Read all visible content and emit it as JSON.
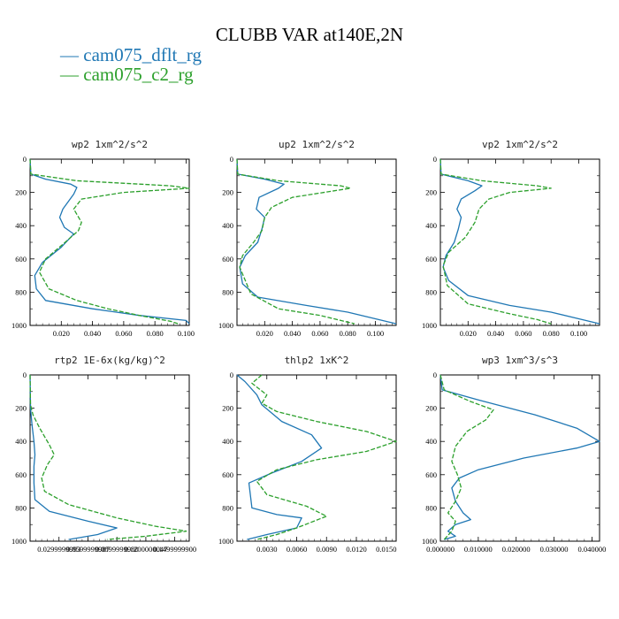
{
  "chart_data": {
    "title": "CLUBB VAR at140E,2N",
    "legend": [
      {
        "label": "cam075_dflt_rg",
        "color": "#1f77b4",
        "dash": "solid"
      },
      {
        "label": "cam075_c2_rg",
        "color": "#2ca02c",
        "dash": "dashed"
      }
    ],
    "panels": [
      {
        "title": "wp2   1xm^2/s^2",
        "type": "line",
        "xlim": [
          0,
          0.102
        ],
        "ylim": [
          0,
          1000
        ],
        "xticks": [
          0.02,
          0.04,
          0.06,
          0.08,
          0.1
        ],
        "xticklabels": [
          "0.020",
          "0.040",
          "0.060",
          "0.080",
          "0.100"
        ],
        "yticks": [
          0,
          200,
          400,
          600,
          800,
          1000
        ],
        "series": [
          {
            "name": "cam075_dflt_rg",
            "x": [
              0,
              0.0005,
              0.01,
              0.026,
              0.03,
              0.028,
              0.021,
              0.019,
              0.022,
              0.028,
              0.02,
              0.008,
              0.003,
              0.004,
              0.01,
              0.04,
              0.07,
              0.1,
              0.102
            ],
            "y": [
              0,
              90,
              120,
              150,
              170,
              210,
              300,
              350,
              410,
              450,
              530,
              620,
              700,
              780,
              850,
              900,
              940,
              970,
              990
            ]
          },
          {
            "name": "cam075_c2_rg",
            "x": [
              0,
              0.0005,
              0.03,
              0.09,
              0.102,
              0.06,
              0.033,
              0.028,
              0.033,
              0.031,
              0.02,
              0.01,
              0.006,
              0.012,
              0.03,
              0.05,
              0.07,
              0.09,
              0.095
            ],
            "y": [
              0,
              90,
              130,
              160,
              175,
              200,
              240,
              300,
              380,
              430,
              520,
              600,
              680,
              780,
              850,
              900,
              940,
              975,
              990
            ]
          }
        ]
      },
      {
        "title": "up2   1xm^2/s^2",
        "type": "line",
        "xlim": [
          0,
          0.115
        ],
        "ylim": [
          0,
          1000
        ],
        "xticks": [
          0.02,
          0.04,
          0.06,
          0.08,
          0.1
        ],
        "xticklabels": [
          "0.020",
          "0.040",
          "0.060",
          "0.080",
          "0.100"
        ],
        "yticks": [
          0,
          200,
          400,
          600,
          800,
          1000
        ],
        "series": [
          {
            "name": "cam075_dflt_rg",
            "x": [
              0,
              0.0005,
              0.02,
              0.034,
              0.03,
              0.016,
              0.014,
              0.02,
              0.018,
              0.015,
              0.006,
              0.002,
              0.004,
              0.015,
              0.05,
              0.08,
              0.1,
              0.115
            ],
            "y": [
              0,
              90,
              120,
              150,
              175,
              230,
              300,
              350,
              420,
              500,
              580,
              650,
              750,
              830,
              880,
              920,
              960,
              990
            ]
          },
          {
            "name": "cam075_c2_rg",
            "x": [
              0,
              0.0005,
              0.03,
              0.075,
              0.082,
              0.04,
              0.025,
              0.02,
              0.018,
              0.012,
              0.004,
              0.002,
              0.01,
              0.03,
              0.06,
              0.075,
              0.085
            ],
            "y": [
              0,
              90,
              130,
              160,
              175,
              230,
              290,
              350,
              430,
              500,
              580,
              650,
              810,
              900,
              940,
              970,
              990
            ]
          }
        ]
      },
      {
        "title": "vp2   1xm^2/s^2",
        "type": "line",
        "xlim": [
          0,
          0.115
        ],
        "ylim": [
          0,
          1000
        ],
        "xticks": [
          0.02,
          0.04,
          0.06,
          0.08,
          0.1
        ],
        "xticklabels": [
          "0.020",
          "0.040",
          "0.060",
          "0.080",
          "0.100"
        ],
        "yticks": [
          0,
          200,
          400,
          600,
          800,
          1000
        ],
        "series": [
          {
            "name": "cam075_dflt_rg",
            "x": [
              0,
              0.0005,
              0.02,
              0.03,
              0.025,
              0.015,
              0.012,
              0.015,
              0.013,
              0.01,
              0.004,
              0.002,
              0.006,
              0.02,
              0.05,
              0.08,
              0.1,
              0.115
            ],
            "y": [
              0,
              90,
              130,
              160,
              190,
              240,
              300,
              350,
              420,
              500,
              580,
              650,
              730,
              820,
              880,
              920,
              960,
              990
            ]
          },
          {
            "name": "cam075_c2_rg",
            "x": [
              0,
              0.0005,
              0.03,
              0.07,
              0.08,
              0.05,
              0.035,
              0.028,
              0.025,
              0.018,
              0.006,
              0.002,
              0.005,
              0.02,
              0.05,
              0.07,
              0.08
            ],
            "y": [
              0,
              90,
              130,
              160,
              175,
              200,
              240,
              300,
              380,
              470,
              560,
              640,
              760,
              870,
              930,
              965,
              990
            ]
          }
        ]
      },
      {
        "title": "rtp2   1E-6x(kg/kg)^2",
        "type": "line",
        "xlim": [
          0,
          165
        ],
        "ylim": [
          0,
          1000
        ],
        "xticks": [
          30,
          60,
          90,
          120,
          150
        ],
        "xticklabels": [
          "0.0299999993",
          "0.0599999987",
          "0.0899999980",
          "0.1200000047",
          "0.1499999900"
        ],
        "yticks": [
          0,
          200,
          400,
          600,
          800,
          1000
        ],
        "series": [
          {
            "name": "cam075_dflt_rg",
            "x": [
              0,
              0.5,
              2,
              4,
              5,
              4,
              4,
              5,
              20,
              60,
              90,
              70,
              40
            ],
            "y": [
              0,
              200,
              300,
              400,
              480,
              550,
              650,
              750,
              820,
              880,
              920,
              960,
              990
            ]
          },
          {
            "name": "cam075_c2_rg",
            "x": [
              0,
              0.5,
              3,
              10,
              20,
              25,
              18,
              12,
              15,
              40,
              90,
              130,
              162,
              120,
              80
            ],
            "y": [
              0,
              180,
              240,
              320,
              420,
              480,
              540,
              620,
              700,
              780,
              860,
              910,
              940,
              970,
              990
            ]
          }
        ]
      },
      {
        "title": "thlp2   1xK^2",
        "type": "line",
        "xlim": [
          0,
          0.016
        ],
        "ylim": [
          0,
          1000
        ],
        "xticks": [
          0.003,
          0.006,
          0.009,
          0.012,
          0.015
        ],
        "xticklabels": [
          "0.0030",
          "0.0060",
          "0.0090",
          "0.0120",
          "0.0150"
        ],
        "yticks": [
          0,
          200,
          400,
          600,
          800,
          1000
        ],
        "series": [
          {
            "name": "cam075_dflt_rg",
            "x": [
              0,
              0.0008,
              0.002,
              0.0025,
              0.0045,
              0.0075,
              0.0085,
              0.0065,
              0.0035,
              0.0012,
              0.0015,
              0.004,
              0.0065,
              0.006,
              0.003,
              0.001
            ],
            "y": [
              0,
              40,
              120,
              180,
              280,
              360,
              440,
              520,
              590,
              650,
              800,
              840,
              860,
              920,
              960,
              990
            ]
          },
          {
            "name": "cam075_c2_rg",
            "x": [
              0.0025,
              0.0015,
              0.003,
              0.0025,
              0.004,
              0.008,
              0.013,
              0.016,
              0.013,
              0.008,
              0.004,
              0.002,
              0.003,
              0.007,
              0.009,
              0.006,
              0.004,
              0.002
            ],
            "y": [
              0,
              50,
              120,
              170,
              220,
              280,
              340,
              400,
              460,
              510,
              570,
              640,
              720,
              790,
              850,
              920,
              960,
              990
            ]
          }
        ]
      },
      {
        "title": "wp3   1xm^3/s^3",
        "type": "line",
        "xlim": [
          0,
          0.042
        ],
        "ylim": [
          0,
          1000
        ],
        "xticks": [
          0,
          0.01,
          0.02,
          0.03,
          0.04
        ],
        "xticklabels": [
          "0.000000",
          "0.010000",
          "0.020000",
          "0.030000",
          "0.040000"
        ],
        "yticks": [
          0,
          200,
          400,
          600,
          800,
          1000
        ],
        "series": [
          {
            "name": "cam075_dflt_rg",
            "x": [
              0,
              0.0005,
              0.01,
              0.025,
              0.036,
              0.042,
              0.036,
              0.022,
              0.01,
              0.005,
              0.003,
              0.004,
              0.006,
              0.008,
              0.004,
              0.002,
              0.004,
              0.001
            ],
            "y": [
              0,
              90,
              150,
              240,
              320,
              400,
              440,
              500,
              570,
              620,
              680,
              760,
              830,
              870,
              900,
              940,
              970,
              990
            ]
          },
          {
            "name": "cam075_c2_rg",
            "x": [
              0,
              0.001,
              0.008,
              0.014,
              0.012,
              0.007,
              0.004,
              0.003,
              0.0045,
              0.0055,
              0.004,
              0.002,
              0.004,
              0.003,
              0.001
            ],
            "y": [
              0,
              90,
              160,
              210,
              270,
              340,
              430,
              520,
              600,
              680,
              760,
              830,
              880,
              940,
              990
            ]
          }
        ]
      }
    ]
  }
}
